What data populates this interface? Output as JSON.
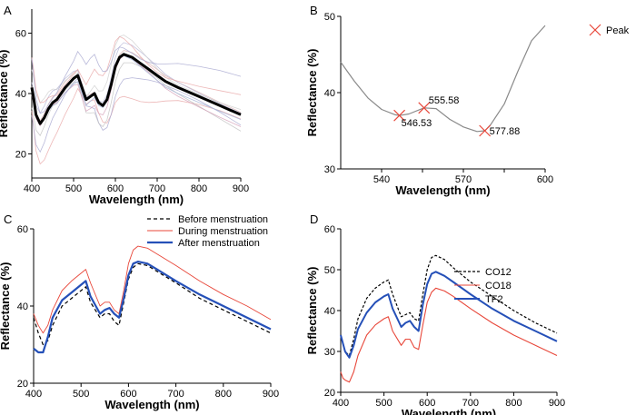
{
  "chart_data": [
    {
      "panel": "A",
      "type": "line",
      "xlabel": "Wavelength (nm)",
      "ylabel": "Reflectance (%)",
      "xlim": [
        400,
        900
      ],
      "ylim": [
        12,
        68
      ],
      "xticks": [
        400,
        500,
        600,
        700,
        800,
        900
      ],
      "yticks": [
        20,
        40,
        60
      ],
      "background_colors": [
        "#e8a6a6",
        "#a6a6cf",
        "#c0c0c0",
        "#d49fb8",
        "#9fb0d4",
        "#d8b0b0",
        "#b8b8d8",
        "#cfcfcf"
      ],
      "background_offsets": [
        -14,
        -10,
        -7,
        -4,
        -2,
        2,
        4,
        7,
        10,
        13
      ],
      "series": [
        {
          "x": [
            400,
            405,
            410,
            420,
            430,
            440,
            450,
            460,
            480,
            500,
            510,
            520,
            530,
            540,
            550,
            560,
            570,
            580,
            590,
            600,
            610,
            620,
            640,
            660,
            680,
            700,
            720,
            750,
            800,
            850,
            900
          ],
          "values": [
            42,
            38,
            33,
            30,
            32,
            35,
            37,
            38,
            42,
            45,
            46,
            42,
            38,
            39,
            40,
            37,
            36,
            38,
            43,
            49,
            52,
            53,
            52,
            50,
            48,
            46,
            44,
            42,
            39,
            36,
            33
          ]
        }
      ]
    },
    {
      "panel": "B",
      "type": "line",
      "xlabel": "Wavelength (nm)",
      "ylabel": "Reflectance (%)",
      "xlim": [
        525,
        600
      ],
      "ylim": [
        30,
        50
      ],
      "xticks": [
        540,
        555,
        570,
        585,
        600
      ],
      "xticklabels": [
        "540",
        "",
        "570",
        "",
        "600"
      ],
      "yticks": [
        30,
        40,
        50
      ],
      "legend": [
        "Peak"
      ],
      "series": [
        {
          "x": [
            525,
            530,
            535,
            540,
            545,
            546.53,
            550,
            555.58,
            560,
            565,
            570,
            575,
            577.88,
            580,
            585,
            590,
            595,
            600
          ],
          "values": [
            44,
            41.5,
            39.3,
            37.8,
            37.1,
            37.0,
            37.2,
            38.0,
            37.9,
            36.5,
            35.5,
            34.9,
            35.0,
            35.8,
            38.5,
            42.8,
            46.8,
            48.8
          ]
        }
      ],
      "peaks": [
        {
          "x": 546.53,
          "y": 37.0,
          "label": "546.53"
        },
        {
          "x": 555.58,
          "y": 38.0,
          "label": "555.58"
        },
        {
          "x": 577.88,
          "y": 35.0,
          "label": "577.88"
        }
      ]
    },
    {
      "panel": "C",
      "type": "line",
      "xlabel": "Wavelength (nm)",
      "ylabel": "Reflectance (%)",
      "xlim": [
        400,
        900
      ],
      "ylim": [
        20,
        60
      ],
      "xticks": [
        400,
        500,
        600,
        700,
        800,
        900
      ],
      "yticks": [
        20,
        40,
        60
      ],
      "legend_position": "top-right",
      "series": [
        {
          "name": "Before menstruation",
          "color": "#000000",
          "dash": "4,3",
          "width": 1.2,
          "x": [
            400,
            410,
            420,
            430,
            440,
            460,
            480,
            500,
            510,
            520,
            540,
            550,
            560,
            570,
            580,
            590,
            600,
            610,
            620,
            640,
            660,
            700,
            750,
            800,
            850,
            900
          ],
          "values": [
            37,
            33,
            30,
            31,
            35,
            40,
            42,
            44,
            45,
            41,
            37,
            38,
            38,
            36,
            35,
            41,
            47,
            50,
            51,
            50.5,
            49,
            46,
            42,
            39,
            36,
            33
          ]
        },
        {
          "name": "During menstruation",
          "color": "#e8473a",
          "dash": "",
          "width": 0.9,
          "x": [
            400,
            410,
            420,
            430,
            440,
            460,
            480,
            500,
            510,
            520,
            540,
            550,
            560,
            570,
            580,
            590,
            600,
            610,
            620,
            640,
            660,
            700,
            750,
            800,
            850,
            900
          ],
          "values": [
            38,
            35,
            33,
            35,
            39,
            44,
            46.5,
            48.5,
            49.5,
            46,
            40,
            41,
            41,
            39,
            38,
            44,
            51,
            54.5,
            55.5,
            55,
            53.5,
            50.5,
            46.5,
            43,
            40,
            36.5
          ]
        },
        {
          "name": "After menstruation",
          "color": "#2550b8",
          "dash": "",
          "width": 2.2,
          "x": [
            400,
            405,
            410,
            420,
            430,
            440,
            460,
            480,
            500,
            510,
            520,
            540,
            550,
            560,
            570,
            580,
            590,
            600,
            610,
            620,
            640,
            660,
            700,
            750,
            800,
            850,
            900
          ],
          "values": [
            29,
            28.5,
            28,
            28,
            32,
            37,
            41.5,
            43.5,
            45.5,
            46.5,
            42.5,
            38,
            39,
            39.5,
            38,
            37,
            42,
            48,
            51,
            51.5,
            51,
            49.5,
            46.5,
            43,
            40,
            37,
            34
          ]
        }
      ]
    },
    {
      "panel": "D",
      "type": "line",
      "xlabel": "Wavelength (nm)",
      "ylabel": "Reflectance (%)",
      "xlim": [
        400,
        900
      ],
      "ylim": [
        20,
        60
      ],
      "xticks": [
        400,
        500,
        600,
        700,
        800,
        900
      ],
      "yticks": [
        20,
        30,
        40,
        50,
        60
      ],
      "legend_position": "top-left",
      "series": [
        {
          "name": "CO12",
          "color": "#000000",
          "dash": "3,2",
          "width": 1.2,
          "x": [
            400,
            410,
            420,
            430,
            440,
            460,
            480,
            500,
            510,
            520,
            540,
            550,
            560,
            570,
            580,
            590,
            600,
            610,
            620,
            640,
            660,
            700,
            750,
            800,
            850,
            900
          ],
          "values": [
            34,
            30,
            29,
            33,
            38,
            43,
            45.5,
            47,
            47.5,
            44,
            38.5,
            39,
            39.5,
            38,
            37.5,
            44,
            50,
            53,
            53.5,
            52.5,
            50.5,
            47,
            43.5,
            40,
            37,
            34.5
          ]
        },
        {
          "name": "CO18",
          "color": "#e8473a",
          "dash": "",
          "width": 1.1,
          "x": [
            400,
            405,
            410,
            420,
            430,
            440,
            460,
            480,
            500,
            510,
            520,
            540,
            550,
            560,
            570,
            580,
            590,
            600,
            610,
            620,
            640,
            660,
            700,
            750,
            800,
            850,
            900
          ],
          "values": [
            25,
            23.5,
            23,
            22.5,
            25,
            29,
            34,
            36.5,
            38,
            38.5,
            35,
            31.5,
            33,
            33,
            31,
            30.5,
            36.5,
            42,
            44.5,
            45.5,
            44.8,
            43.5,
            40.5,
            37,
            34,
            31.5,
            29
          ]
        },
        {
          "name": "TF2",
          "color": "#2550b8",
          "dash": "",
          "width": 2.0,
          "x": [
            400,
            410,
            420,
            430,
            440,
            460,
            480,
            500,
            510,
            520,
            540,
            550,
            560,
            570,
            580,
            590,
            600,
            610,
            620,
            640,
            660,
            700,
            750,
            800,
            850,
            900
          ],
          "values": [
            34,
            30,
            28.5,
            31.5,
            35.5,
            39.5,
            42,
            43.5,
            44,
            40.5,
            36,
            37,
            37.5,
            36,
            35,
            41.5,
            46.5,
            49,
            49.5,
            48.5,
            47,
            44,
            40.5,
            37.5,
            35,
            32.5
          ]
        }
      ]
    }
  ]
}
